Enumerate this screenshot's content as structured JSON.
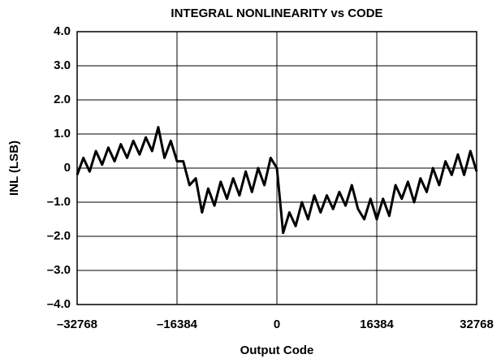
{
  "chart_data": {
    "type": "line",
    "title": "INTEGRAL NONLINEARITY vs CODE",
    "x_label": "Output Code",
    "y_label": "INL (LSB)",
    "x": [
      -32768,
      -31744,
      -30720,
      -29696,
      -28672,
      -27648,
      -26624,
      -25600,
      -24576,
      -23552,
      -22528,
      -21504,
      -20480,
      -19456,
      -18432,
      -17408,
      -16384,
      -15360,
      -14336,
      -13312,
      -12288,
      -11264,
      -10240,
      -9216,
      -8192,
      -7168,
      -6144,
      -5120,
      -4096,
      -3072,
      -2048,
      -1024,
      0,
      1024,
      2048,
      3072,
      4096,
      5120,
      6144,
      7168,
      8192,
      9216,
      10240,
      11264,
      12288,
      13312,
      14336,
      15360,
      16384,
      17408,
      18432,
      19456,
      20480,
      21504,
      22528,
      23552,
      24576,
      25600,
      26624,
      27648,
      28672,
      29696,
      30720,
      31744,
      32768
    ],
    "series": [
      {
        "name": "INL",
        "color": "#000000",
        "values": [
          -0.2,
          0.3,
          -0.1,
          0.5,
          0.1,
          0.6,
          0.2,
          0.7,
          0.3,
          0.8,
          0.4,
          0.9,
          0.5,
          1.2,
          0.3,
          0.8,
          0.2,
          0.2,
          -0.5,
          -0.3,
          -1.3,
          -0.6,
          -1.1,
          -0.4,
          -0.9,
          -0.3,
          -0.8,
          -0.1,
          -0.7,
          0.0,
          -0.5,
          0.3,
          0.0,
          -1.9,
          -1.3,
          -1.7,
          -1.0,
          -1.5,
          -0.8,
          -1.3,
          -0.8,
          -1.2,
          -0.7,
          -1.1,
          -0.5,
          -1.2,
          -1.5,
          -0.9,
          -1.5,
          -0.9,
          -1.4,
          -0.5,
          -0.9,
          -0.4,
          -1.0,
          -0.3,
          -0.7,
          0.0,
          -0.5,
          0.2,
          -0.2,
          0.4,
          -0.2,
          0.5,
          -0.1
        ]
      }
    ],
    "xlim": [
      -32768,
      32768
    ],
    "xticks": [
      {
        "value": -32768,
        "label": "–32768"
      },
      {
        "value": -16384,
        "label": "–16384"
      },
      0,
      16384,
      32768
    ],
    "ylim": [
      -4,
      4
    ],
    "yticks": [
      {
        "value": -4,
        "label": "–4.0"
      },
      {
        "value": -3,
        "label": "–3.0"
      },
      {
        "value": -2,
        "label": "–2.0"
      },
      {
        "value": -1,
        "label": "–1.0"
      },
      0,
      {
        "value": 1,
        "label": "1.0"
      },
      {
        "value": 2,
        "label": "2.0"
      },
      {
        "value": 3,
        "label": "3.0"
      },
      {
        "value": 4,
        "label": "4.0"
      }
    ],
    "grid": true
  }
}
